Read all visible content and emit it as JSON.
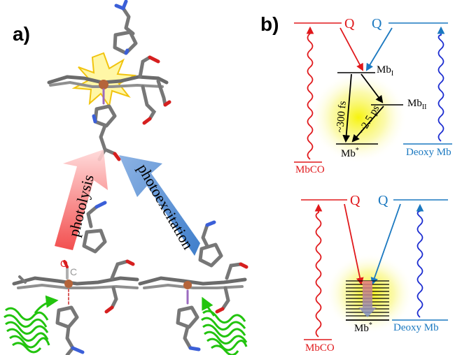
{
  "panel_a": {
    "label": "a)",
    "arrow_photolysis": "photolysis",
    "arrow_photoexcitation": "photoexcitation",
    "co_o": "O",
    "co_c": "C"
  },
  "panel_b": {
    "label": "b)",
    "top": {
      "q_red": "Q",
      "q_blue": "Q",
      "mb1": "Mb",
      "mb1_sub": "I",
      "mb2": "Mb",
      "mb2_sub": "II",
      "mbstar": "Mb",
      "mbstar_sup": "*",
      "t1": "~300 fs",
      "t2": "~2.5 ps",
      "mbco": "MbCO",
      "deoxy": "Deoxy Mb"
    },
    "bottom": {
      "q_red": "Q",
      "q_blue": "Q",
      "mbstar": "Mb",
      "mbstar_sup": "*",
      "mbco": "MbCO",
      "deoxy": "Deoxy Mb"
    }
  },
  "colors": {
    "red": "#e0181b",
    "blue": "#1a78c0",
    "green": "#22c40e",
    "heme_gray": "#8a8a8a",
    "iron": "#b5643a",
    "glow": "#f4f200",
    "arrow_red": "#f05a5a",
    "arrow_blue": "#4f86cf"
  }
}
